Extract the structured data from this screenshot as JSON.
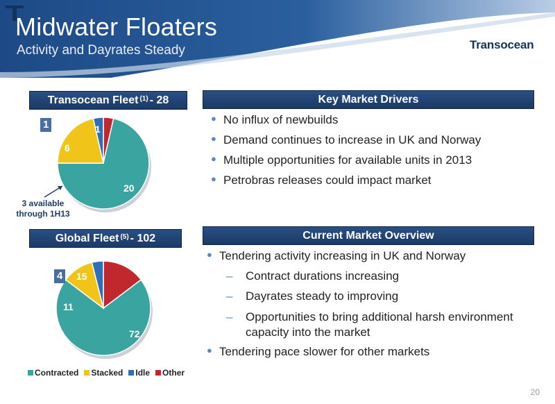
{
  "header": {
    "title": "Midwater Floaters",
    "subtitle": "Activity and Dayrates Steady",
    "logo_text": "Transocean"
  },
  "left": {
    "fleet_title_pre": "Transocean Fleet",
    "fleet_sup": "(1)",
    "fleet_title_post": "- 28",
    "global_title_pre": "Global Fleet",
    "global_sup": "(5)",
    "global_title_post": "- 102",
    "fleet_note": "3 available through 1H13"
  },
  "chart_data": [
    {
      "type": "pie",
      "title": "Transocean Fleet (1) - 28",
      "categories": [
        "Contracted",
        "Stacked",
        "Idle",
        "Other"
      ],
      "values": [
        20,
        6,
        1,
        1
      ],
      "colors": [
        "#3aa5a0",
        "#f0c419",
        "#2f6fb8",
        "#c0282e"
      ]
    },
    {
      "type": "pie",
      "title": "Global Fleet (5) - 102",
      "categories": [
        "Contracted",
        "Stacked",
        "Idle",
        "Other"
      ],
      "values": [
        72,
        11,
        4,
        15
      ],
      "colors": [
        "#3aa5a0",
        "#f0c419",
        "#2f6fb8",
        "#c0282e"
      ],
      "legend": "bottom"
    }
  ],
  "legend": {
    "items": [
      "Contracted",
      "Stacked",
      "Idle",
      "Other"
    ]
  },
  "key_drivers": {
    "title": "Key Market Drivers",
    "items": [
      "No influx of newbuilds",
      "Demand continues to increase in UK and Norway",
      "Multiple opportunities for available units in 2013",
      "Petrobras releases could impact market"
    ]
  },
  "market_overview": {
    "title": "Current Market Overview",
    "item1": "Tendering activity increasing in UK and Norway",
    "subitems": [
      "Contract durations increasing",
      "Dayrates steady to improving",
      "Opportunities to bring additional harsh environment capacity into the market"
    ],
    "item2": "Tendering pace slower for other markets"
  },
  "page_number": "20"
}
